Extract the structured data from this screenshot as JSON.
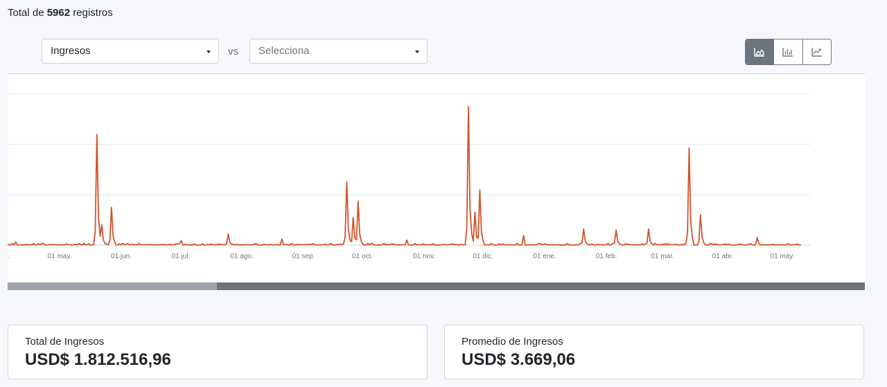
{
  "header": {
    "total_prefix": "Total de ",
    "total_count": "5962",
    "total_suffix": " registros"
  },
  "controls": {
    "select_primary": "Ingresos",
    "vs_label": "vs",
    "select_secondary_placeholder": "Selecciona",
    "chart_type_buttons": [
      {
        "icon": "area-chart-icon",
        "active": true
      },
      {
        "icon": "bar-chart-icon",
        "active": false
      },
      {
        "icon": "line-chart-icon",
        "active": false
      }
    ]
  },
  "chart_data": {
    "type": "line",
    "color": "#d2522a",
    "x_labels": [
      "r.",
      "01 may.",
      "01 jun.",
      "01 jul.",
      "01 ago.",
      "01 sep.",
      "01 oct.",
      "01 nov.",
      "01 dic.",
      "01 ene.",
      "01 feb.",
      "01 mar.",
      "01 abr.",
      "01 may."
    ],
    "ylim": [
      0,
      30
    ],
    "grid": true,
    "peaks": [
      {
        "day": 5,
        "value": 0.6
      },
      {
        "day": 55,
        "value": 22
      },
      {
        "day": 58,
        "value": 4
      },
      {
        "day": 64,
        "value": 7.5
      },
      {
        "day": 107,
        "value": 0.9
      },
      {
        "day": 136,
        "value": 2.2
      },
      {
        "day": 169,
        "value": 1.2
      },
      {
        "day": 209,
        "value": 12.5
      },
      {
        "day": 213,
        "value": 5.5
      },
      {
        "day": 216,
        "value": 8.7
      },
      {
        "day": 246,
        "value": 1.0
      },
      {
        "day": 284,
        "value": 27.5
      },
      {
        "day": 288,
        "value": 6.5
      },
      {
        "day": 291,
        "value": 11
      },
      {
        "day": 318,
        "value": 1.9
      },
      {
        "day": 355,
        "value": 3.2
      },
      {
        "day": 375,
        "value": 3.0
      },
      {
        "day": 395,
        "value": 3.2
      },
      {
        "day": 420,
        "value": 19.3
      },
      {
        "day": 427,
        "value": 6.0
      },
      {
        "day": 462,
        "value": 1.5
      }
    ]
  },
  "scrollbar": {
    "visible_fraction": 0.244
  },
  "cards": [
    {
      "label": "Total de Ingresos",
      "value": "USD$ 1.812.516,96"
    },
    {
      "label": "Promedio de Ingresos",
      "value": "USD$ 3.669,06"
    }
  ]
}
